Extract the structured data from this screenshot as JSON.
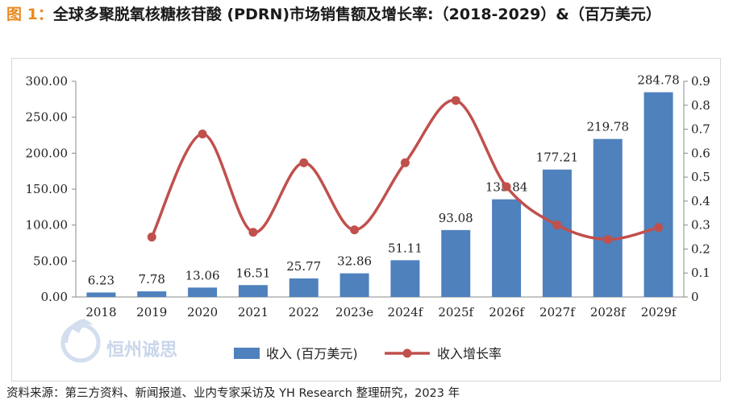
{
  "title": {
    "tag": "图 1：",
    "text": "全球多聚脱氧核糖核苷酸 (PDRN)市场销售额及增长率:（2018-2029）&（百万美元）"
  },
  "watermark": "恒州诚思",
  "source": "资料来源：第三方资料、新闻报道、业内专家采访及 YH Research 整理研究，2023 年",
  "colors": {
    "bar": "#4f81bd",
    "line": "#c0504d",
    "tag": "#e8891e"
  },
  "chart_data": {
    "type": "bar",
    "categories": [
      "2018",
      "2019",
      "2020",
      "2021",
      "2022",
      "2023e",
      "2024f",
      "2025f",
      "2026f",
      "2027f",
      "2028f",
      "2029f"
    ],
    "series": [
      {
        "name": "收入 (百万美元)",
        "type": "bar",
        "axis": "left",
        "values": [
          6.23,
          7.78,
          13.06,
          16.51,
          25.77,
          32.86,
          51.11,
          93.08,
          135.84,
          177.21,
          219.78,
          284.78
        ],
        "labels": [
          "6.23",
          "7.78",
          "13.06",
          "16.51",
          "25.77",
          "32.86",
          "51.11",
          "93.08",
          "135.84",
          "177.21",
          "219.78",
          "284.78"
        ]
      },
      {
        "name": "收入增长率",
        "type": "line",
        "axis": "right",
        "smooth": true,
        "values": [
          null,
          0.25,
          0.68,
          0.27,
          0.56,
          0.28,
          0.56,
          0.82,
          0.46,
          0.3,
          0.24,
          0.29
        ]
      }
    ],
    "ylim_left": [
      0,
      300
    ],
    "yticks_left": [
      "0.00",
      "50.00",
      "100.00",
      "150.00",
      "200.00",
      "250.00",
      "300.00"
    ],
    "ylim_right": [
      0,
      0.9
    ],
    "yticks_right": [
      "0",
      "0.1",
      "0.2",
      "0.3",
      "0.4",
      "0.5",
      "0.6",
      "0.7",
      "0.8",
      "0.9"
    ],
    "legend": [
      "收入 (百万美元)",
      "收入增长率"
    ],
    "legend_position": "bottom",
    "grid": false
  }
}
